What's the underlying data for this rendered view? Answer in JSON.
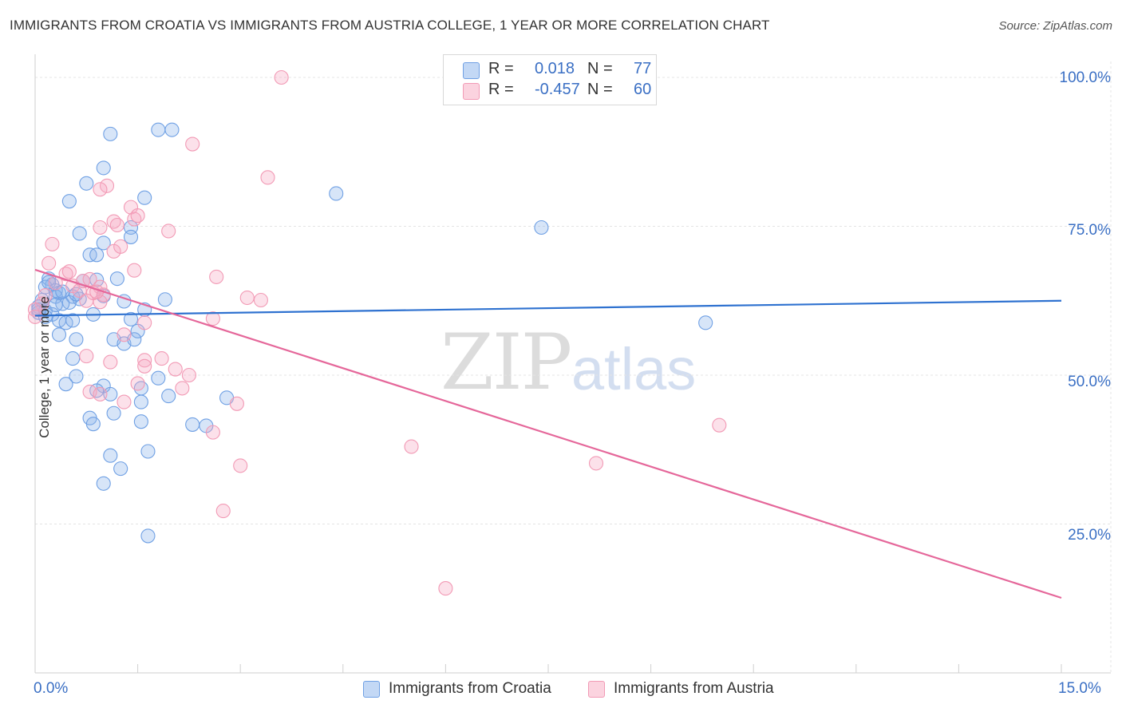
{
  "title": "IMMIGRANTS FROM CROATIA VS IMMIGRANTS FROM AUSTRIA COLLEGE, 1 YEAR OR MORE CORRELATION CHART",
  "source": "Source: ZipAtlas.com",
  "watermark": {
    "zip": "ZIP",
    "atlas": "atlas"
  },
  "stats": [
    {
      "r_label": "R =",
      "r_value": "0.018",
      "n_label": "N =",
      "n_value": "77",
      "color": "#6fa0e4"
    },
    {
      "r_label": "R =",
      "r_value": "-0.457",
      "n_label": "N =",
      "n_value": "60",
      "color": "#f29ab5"
    }
  ],
  "legend": [
    {
      "label": "Immigrants from Croatia",
      "color": "#6fa0e4"
    },
    {
      "label": "Immigrants from Austria",
      "color": "#f29ab5"
    }
  ],
  "axis": {
    "ylabel": "College, 1 year or more",
    "x_min_label": "0.0%",
    "x_max_label": "15.0%",
    "y_tick_labels": [
      "100.0%",
      "75.0%",
      "50.0%",
      "25.0%"
    ]
  },
  "chart_data": {
    "type": "scatter",
    "title": "IMMIGRANTS FROM CROATIA VS IMMIGRANTS FROM AUSTRIA COLLEGE, 1 YEAR OR MORE CORRELATION CHART",
    "xlabel": "",
    "ylabel": "College, 1 year or more",
    "xlim": [
      0,
      15
    ],
    "ylim": [
      0,
      100
    ],
    "y_ticks": [
      25,
      50,
      75,
      100
    ],
    "grid": true,
    "series": [
      {
        "name": "Immigrants from Croatia",
        "color": "#6fa0e4",
        "trend": {
          "x0": 0,
          "y0": 60.0,
          "x1": 15,
          "y1": 62.5
        },
        "points": [
          [
            1.1,
            90.5
          ],
          [
            1.8,
            91.2
          ],
          [
            2.0,
            91.2
          ],
          [
            1.0,
            84.8
          ],
          [
            0.75,
            82.2
          ],
          [
            0.5,
            79.2
          ],
          [
            1.6,
            79.8
          ],
          [
            4.4,
            80.5
          ],
          [
            7.4,
            74.8
          ],
          [
            1.4,
            74.8
          ],
          [
            1.4,
            73.2
          ],
          [
            0.65,
            73.8
          ],
          [
            1.0,
            72.2
          ],
          [
            0.8,
            70.2
          ],
          [
            0.9,
            70.2
          ],
          [
            1.2,
            66.2
          ],
          [
            0.2,
            66.2
          ],
          [
            0.25,
            65.2
          ],
          [
            0.15,
            64.8
          ],
          [
            0.3,
            64.2
          ],
          [
            0.35,
            63.8
          ],
          [
            0.3,
            63.2
          ],
          [
            0.55,
            63.2
          ],
          [
            0.65,
            62.8
          ],
          [
            0.5,
            62.2
          ],
          [
            0.4,
            62.0
          ],
          [
            1.3,
            62.4
          ],
          [
            1.9,
            62.7
          ],
          [
            0.05,
            61.5
          ],
          [
            0.15,
            60.8
          ],
          [
            0.25,
            60.2
          ],
          [
            0.85,
            60.2
          ],
          [
            1.6,
            61.0
          ],
          [
            0.05,
            60.5
          ],
          [
            0.35,
            59.2
          ],
          [
            0.45,
            58.8
          ],
          [
            0.55,
            59.2
          ],
          [
            1.5,
            57.4
          ],
          [
            0.35,
            56.8
          ],
          [
            0.6,
            56.0
          ],
          [
            1.15,
            56.0
          ],
          [
            1.3,
            55.3
          ],
          [
            1.45,
            56.0
          ],
          [
            9.8,
            58.8
          ],
          [
            0.55,
            52.8
          ],
          [
            0.6,
            49.8
          ],
          [
            1.8,
            49.5
          ],
          [
            0.45,
            48.5
          ],
          [
            1.0,
            48.2
          ],
          [
            0.9,
            47.4
          ],
          [
            1.55,
            47.8
          ],
          [
            1.1,
            46.8
          ],
          [
            1.95,
            46.5
          ],
          [
            2.8,
            46.2
          ],
          [
            1.55,
            45.5
          ],
          [
            1.15,
            43.6
          ],
          [
            0.8,
            42.8
          ],
          [
            0.85,
            41.8
          ],
          [
            1.55,
            42.2
          ],
          [
            2.3,
            41.7
          ],
          [
            2.5,
            41.5
          ],
          [
            1.65,
            37.2
          ],
          [
            1.1,
            36.5
          ],
          [
            1.25,
            34.3
          ],
          [
            1.0,
            31.8
          ],
          [
            1.65,
            23.0
          ],
          [
            0.9,
            66.0
          ],
          [
            0.7,
            65.8
          ],
          [
            0.2,
            65.6
          ],
          [
            0.4,
            64.0
          ],
          [
            0.6,
            63.6
          ],
          [
            0.1,
            62.6
          ],
          [
            1.0,
            63.3
          ],
          [
            0.3,
            61.8
          ],
          [
            1.4,
            59.4
          ],
          [
            0.05,
            61.0
          ],
          [
            0.15,
            59.8
          ]
        ]
      },
      {
        "name": "Immigrants from Austria",
        "color": "#f29ab5",
        "trend": {
          "x0": 0,
          "y0": 67.7,
          "x1": 15,
          "y1": 12.6
        },
        "points": [
          [
            3.6,
            100.0
          ],
          [
            2.3,
            88.8
          ],
          [
            3.4,
            83.2
          ],
          [
            1.05,
            81.8
          ],
          [
            0.95,
            81.2
          ],
          [
            1.4,
            78.2
          ],
          [
            1.45,
            76.2
          ],
          [
            1.15,
            75.8
          ],
          [
            1.2,
            75.2
          ],
          [
            0.95,
            74.8
          ],
          [
            1.95,
            74.2
          ],
          [
            0.25,
            72.0
          ],
          [
            1.15,
            70.8
          ],
          [
            0.2,
            68.8
          ],
          [
            1.45,
            67.6
          ],
          [
            0.45,
            67.0
          ],
          [
            2.65,
            66.5
          ],
          [
            0.7,
            65.8
          ],
          [
            0.8,
            66.1
          ],
          [
            0.3,
            65.5
          ],
          [
            0.55,
            65.0
          ],
          [
            0.95,
            64.8
          ],
          [
            0.65,
            64.2
          ],
          [
            0.85,
            63.8
          ],
          [
            1.0,
            63.5
          ],
          [
            3.1,
            63.0
          ],
          [
            3.3,
            62.6
          ],
          [
            0.75,
            62.5
          ],
          [
            0.95,
            62.3
          ],
          [
            0.1,
            62.0
          ],
          [
            0.0,
            61.0
          ],
          [
            0.0,
            59.8
          ],
          [
            2.6,
            59.5
          ],
          [
            1.6,
            58.8
          ],
          [
            1.3,
            56.8
          ],
          [
            0.75,
            53.2
          ],
          [
            1.1,
            52.2
          ],
          [
            1.6,
            52.5
          ],
          [
            1.85,
            52.8
          ],
          [
            1.6,
            51.5
          ],
          [
            2.05,
            51.0
          ],
          [
            2.25,
            50.0
          ],
          [
            1.5,
            48.6
          ],
          [
            2.15,
            47.8
          ],
          [
            0.8,
            47.2
          ],
          [
            0.95,
            46.8
          ],
          [
            1.3,
            45.5
          ],
          [
            2.95,
            45.2
          ],
          [
            10.0,
            41.6
          ],
          [
            2.6,
            40.4
          ],
          [
            5.5,
            38.0
          ],
          [
            3.0,
            34.8
          ],
          [
            8.2,
            35.2
          ],
          [
            2.75,
            27.2
          ],
          [
            6.0,
            14.2
          ],
          [
            1.5,
            76.8
          ],
          [
            0.9,
            64.0
          ],
          [
            0.5,
            67.4
          ],
          [
            0.15,
            63.4
          ],
          [
            1.25,
            71.6
          ]
        ]
      }
    ]
  }
}
